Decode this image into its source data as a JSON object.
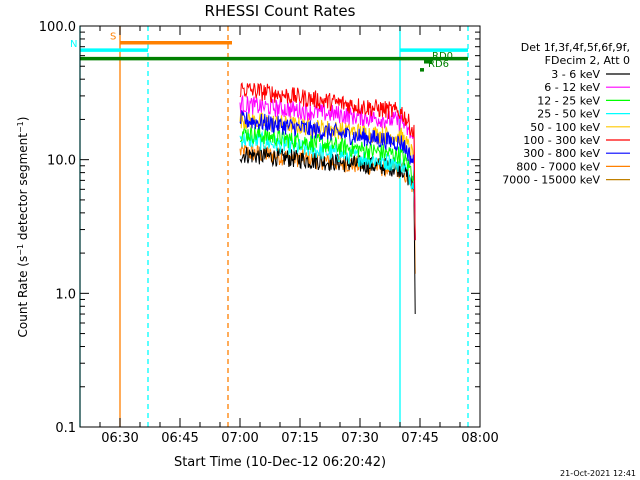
{
  "chart_data": {
    "type": "line",
    "title": "RHESSI Count Rates",
    "xlabel": "Start Time (10-Dec-12 06:20:42)",
    "ylabel_main": "Count Rate (s",
    "ylabel_sup1": "−1",
    "ylabel_mid": " detector segment",
    "ylabel_sup2": "−1",
    "ylabel_end": ")",
    "x_scale": "time",
    "x_range": [
      "06:20",
      "08:00"
    ],
    "x_ticks": [
      "06:30",
      "06:45",
      "07:00",
      "07:15",
      "07:30",
      "07:45",
      "08:00"
    ],
    "y_scale": "log",
    "y_range": [
      0.1,
      100.0
    ],
    "y_ticks": [
      "0.1",
      "1.0",
      "10.0",
      "100.0"
    ],
    "grid": false,
    "legend_header": [
      "Det 1f,3f,4f,5f,6f,9f,",
      "FDecim 2, Att 0"
    ],
    "legend_position": "right",
    "series": [
      {
        "name": "3 - 6 keV",
        "color": "#000000",
        "start": "07:00",
        "end": "07:43",
        "y_start": 11.0,
        "y_end": 8.5,
        "drop_to": 0.7
      },
      {
        "name": "6 - 12 keV",
        "color": "#ff00ff",
        "start": "07:00",
        "end": "07:43",
        "y_start": 26.0,
        "y_end": 19.0,
        "drop_to": 2.5
      },
      {
        "name": "12 - 25 keV",
        "color": "#00ff00",
        "start": "07:00",
        "end": "07:43",
        "y_start": 16.0,
        "y_end": 10.5,
        "drop_to": 2.5
      },
      {
        "name": "25 - 50 keV",
        "color": "#00ffff",
        "start": "07:00",
        "end": "07:43",
        "y_start": 14.5,
        "y_end": 9.0,
        "drop_to": 2.5
      },
      {
        "name": "50 - 100 keV",
        "color": "#ffc800",
        "start": "07:00",
        "end": "07:43",
        "y_start": 20.0,
        "y_end": 14.5,
        "drop_to": 2.5
      },
      {
        "name": "100 - 300 keV",
        "color": "#ff0000",
        "start": "07:00",
        "end": "07:43",
        "y_start": 34.0,
        "y_end": 22.0,
        "drop_to": 2.5
      },
      {
        "name": "300 - 800 keV",
        "color": "#0000ff",
        "start": "07:00",
        "end": "07:43",
        "y_start": 20.0,
        "y_end": 13.0,
        "drop_to": 2.5
      },
      {
        "name": "800 - 7000 keV",
        "color": "#ff8000",
        "start": "07:00",
        "end": "07:43",
        "y_start": 11.5,
        "y_end": 8.2,
        "drop_to": 1.4
      },
      {
        "name": "7000 - 15000 keV",
        "color": "#c08000",
        "start": "07:00",
        "end": "07:43",
        "y_start": null,
        "y_end": null,
        "drop_to": null
      }
    ],
    "annotations": {
      "vertical_lines": [
        {
          "time": "06:20",
          "color": "#00ffff",
          "style": "solid"
        },
        {
          "time": "06:30",
          "color": "#ff8000",
          "style": "solid"
        },
        {
          "time": "06:37",
          "color": "#00ffff",
          "style": "dashed"
        },
        {
          "time": "06:57",
          "color": "#ff8000",
          "style": "dashed"
        },
        {
          "time": "07:40",
          "color": "#00ffff",
          "style": "solid"
        },
        {
          "time": "07:57",
          "color": "#00ffff",
          "style": "dashed"
        }
      ],
      "bars": [
        {
          "label": "S",
          "color": "#ff8000",
          "start": "06:30",
          "end": "06:58",
          "y": 75.0
        },
        {
          "label": "N",
          "color": "#00ffff",
          "start": "06:20",
          "end": "06:37",
          "y": 66.0
        },
        {
          "label": "",
          "color": "#00ffff",
          "start": "07:40",
          "end": "07:57",
          "y": 66.0
        },
        {
          "label": "",
          "color": "#008000",
          "start": "06:20",
          "end": "07:57",
          "y": 57.0
        },
        {
          "label": "RD0",
          "color": "#008000",
          "start": "07:46",
          "end": "07:48",
          "y": 54.0
        },
        {
          "label": "RD6",
          "color": "#008000",
          "start": "07:45",
          "end": "07:46",
          "y": 47.0
        }
      ]
    }
  },
  "footer": {
    "timestamp": "21-Oct-2021 12:41"
  }
}
